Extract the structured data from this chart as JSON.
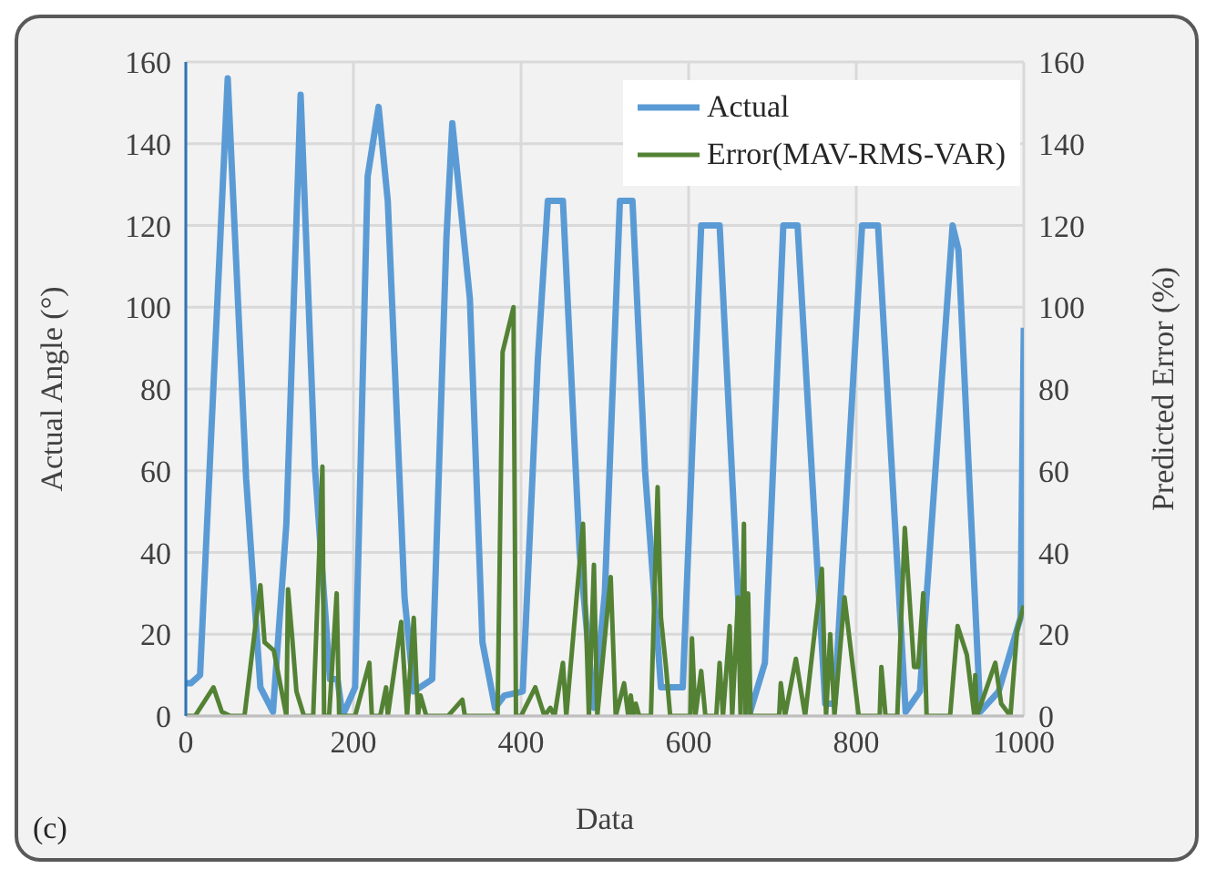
{
  "chart_data": {
    "type": "line",
    "xlabel": "Data",
    "ylabel": "Actual Angle (°)",
    "y2label": "Predicted Error (%)",
    "annotations": [
      "(c)"
    ],
    "xlim": [
      0,
      1000
    ],
    "xticks": [
      0,
      200,
      400,
      600,
      800,
      1000
    ],
    "ylim": [
      0,
      160
    ],
    "yticks": [
      0,
      20,
      40,
      60,
      80,
      100,
      120,
      140,
      160
    ],
    "y2lim": [
      0,
      160
    ],
    "y2ticks": [
      0,
      20,
      40,
      60,
      80,
      100,
      120,
      140,
      160
    ],
    "grid": true,
    "legend": "top right",
    "marker": "none",
    "line_style": "solid",
    "series": [
      {
        "name": "Actual",
        "color": "#5b9bd5",
        "x": [
          0,
          6,
          17,
          50,
          72,
          89,
          104,
          120,
          137,
          154,
          172,
          181,
          187,
          202,
          217,
          230,
          241,
          261,
          272,
          294,
          311,
          318,
          339,
          354,
          369,
          380,
          402,
          420,
          432,
          450,
          470,
          487,
          500,
          518,
          533,
          548,
          567,
          593,
          615,
          637,
          663,
          672,
          691,
          713,
          730,
          763,
          774,
          807,
          826,
          859,
          876,
          915,
          922,
          948,
          970,
          996,
          1000
        ],
        "values": [
          8,
          8,
          10,
          156,
          58,
          7,
          1,
          47,
          152,
          61,
          9,
          9,
          0,
          7,
          132,
          149,
          126,
          29,
          6,
          9,
          117,
          145,
          102,
          18,
          2,
          5,
          6,
          87,
          126,
          126,
          40,
          2,
          30,
          126,
          126,
          60,
          7,
          7,
          120,
          120,
          13,
          0,
          13,
          120,
          120,
          3,
          3,
          120,
          120,
          1,
          6,
          120,
          114,
          1,
          6,
          24,
          95
        ]
      },
      {
        "name": "Error(MAV-RMS-VAR)",
        "color": "#548235",
        "axis": "y2",
        "x": [
          0,
          11,
          33,
          43,
          53,
          65,
          70,
          89,
          94,
          105,
          120,
          122,
          127,
          132,
          141,
          152,
          163,
          165,
          171,
          180,
          183,
          202,
          219,
          222,
          232,
          239,
          241,
          257,
          264,
          272,
          277,
          280,
          287,
          313,
          330,
          333,
          372,
          378,
          391,
          394,
          400,
          417,
          428,
          435,
          440,
          450,
          454,
          474,
          481,
          487,
          491,
          507,
          513,
          523,
          528,
          531,
          534,
          537,
          541,
          555,
          563,
          567,
          573,
          578,
          602,
          604,
          608,
          615,
          620,
          633,
          637,
          641,
          649,
          652,
          659,
          662,
          666,
          668,
          671,
          674,
          708,
          710,
          715,
          728,
          739,
          759,
          764,
          769,
          774,
          786,
          803,
          828,
          830,
          835,
          849,
          858,
          869,
          874,
          880,
          884,
          912,
          921,
          932,
          941,
          942,
          944,
          966,
          973,
          984,
          992,
          1000
        ],
        "values": [
          0,
          0,
          7,
          1,
          0,
          0,
          0,
          32,
          18,
          16,
          0,
          31,
          19,
          6,
          0,
          0,
          61,
          0,
          0,
          30,
          0,
          0,
          13,
          0,
          0,
          7,
          0,
          23,
          0,
          24,
          0,
          5,
          0,
          0,
          4,
          0,
          0,
          89,
          100,
          0,
          0,
          7,
          0,
          2,
          0,
          13,
          0,
          47,
          0,
          37,
          0,
          34,
          0,
          8,
          0,
          5,
          0,
          3,
          0,
          0,
          56,
          24,
          12,
          0,
          0,
          19,
          0,
          11,
          0,
          0,
          13,
          0,
          22,
          0,
          29,
          0,
          47,
          0,
          30,
          0,
          0,
          8,
          0,
          14,
          0,
          36,
          0,
          20,
          0,
          29,
          0,
          0,
          12,
          0,
          0,
          46,
          12,
          12,
          30,
          0,
          0,
          22,
          15,
          0,
          10,
          0,
          13,
          3,
          0,
          21,
          27
        ]
      }
    ]
  }
}
